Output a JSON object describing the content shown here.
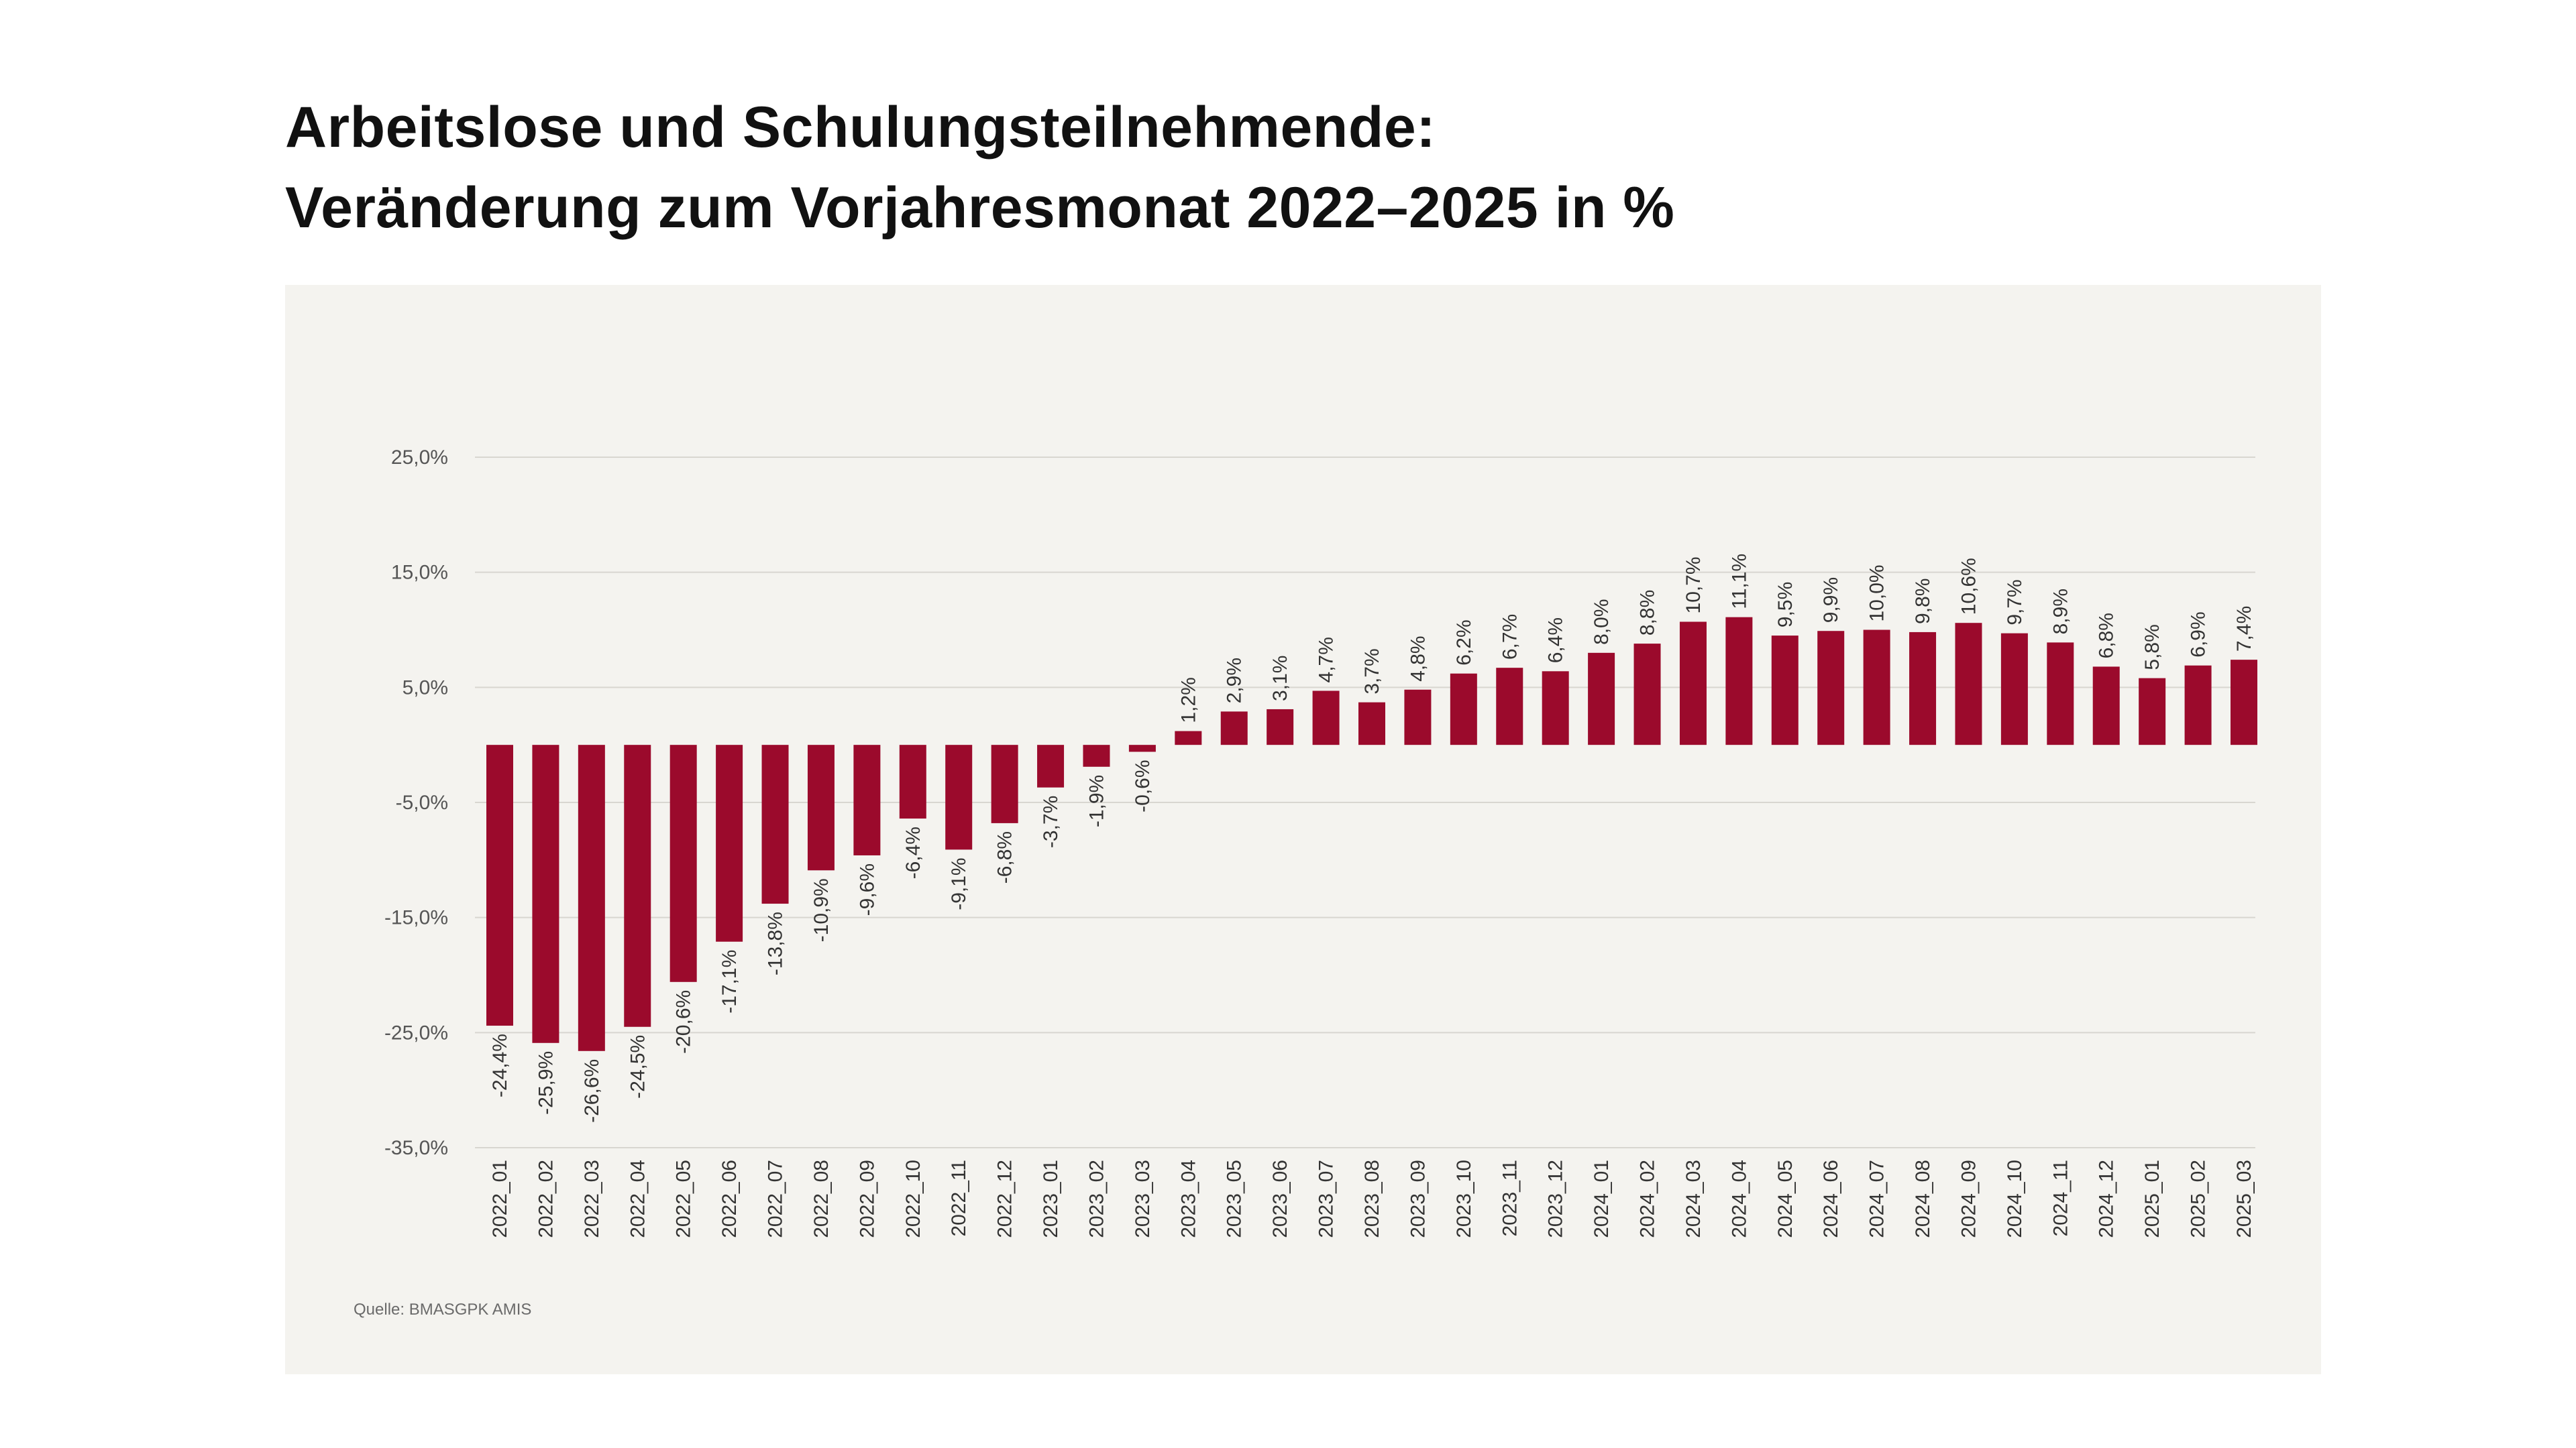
{
  "title": {
    "line1": "Arbeitslose und Schulungsteilnehmende:",
    "line2": "Veränderung zum Vorjahresmonat 2022–2025 in %"
  },
  "source": "Quelle: BMASGPK AMIS",
  "colors": {
    "bar": "#9b0a2c",
    "panel": "#f4f3ef",
    "grid": "#d8d6d0",
    "text": "#333333",
    "axis_text": "#555555"
  },
  "chart_data": {
    "type": "bar",
    "title": "Arbeitslose und Schulungsteilnehmende: Veränderung zum Vorjahresmonat 2022–2025 in %",
    "xlabel": "",
    "ylabel": "",
    "ylim": [
      -35,
      25
    ],
    "yticks": [
      25,
      15,
      5,
      -5,
      -15,
      -25,
      -35
    ],
    "ytick_labels": [
      "25,0%",
      "15,0%",
      "5,0%",
      "-5,0%",
      "-15,0%",
      "-25,0%",
      "-35,0%"
    ],
    "grid": true,
    "categories": [
      "2022_01",
      "2022_02",
      "2022_03",
      "2022_04",
      "2022_05",
      "2022_06",
      "2022_07",
      "2022_08",
      "2022_09",
      "2022_10",
      "2022_11",
      "2022_12",
      "2023_01",
      "2023_02",
      "2023_03",
      "2023_04",
      "2023_05",
      "2023_06",
      "2023_07",
      "2023_08",
      "2023_09",
      "2023_10",
      "2023_11",
      "2023_12",
      "2024_01",
      "2024_02",
      "2024_03",
      "2024_04",
      "2024_05",
      "2024_06",
      "2024_07",
      "2024_08",
      "2024_09",
      "2024_10",
      "2024_11",
      "2024_12",
      "2025_01",
      "2025_02",
      "2025_03"
    ],
    "values": [
      -24.4,
      -25.9,
      -26.6,
      -24.5,
      -20.6,
      -17.1,
      -13.8,
      -10.9,
      -9.6,
      -6.4,
      -9.1,
      -6.8,
      -3.7,
      -1.9,
      -0.6,
      1.2,
      2.9,
      3.1,
      4.7,
      3.7,
      4.8,
      6.2,
      6.7,
      6.4,
      8.0,
      8.8,
      10.7,
      11.1,
      9.5,
      9.9,
      10.0,
      9.8,
      10.6,
      9.7,
      8.9,
      6.8,
      5.8,
      6.9,
      7.4
    ],
    "value_labels": [
      "-24,4%",
      "-25,9%",
      "-26,6%",
      "-24,5%",
      "-20,6%",
      "-17,1%",
      "-13,8%",
      "-10,9%",
      "-9,6%",
      "-6,4%",
      "-9,1%",
      "-6,8%",
      "-3,7%",
      "-1,9%",
      "-0,6%",
      "1,2%",
      "2,9%",
      "3,1%",
      "4,7%",
      "3,7%",
      "4,8%",
      "6,2%",
      "6,7%",
      "6,4%",
      "8,0%",
      "8,8%",
      "10,7%",
      "11,1%",
      "9,5%",
      "9,9%",
      "10,0%",
      "9,8%",
      "10,6%",
      "9,7%",
      "8,9%",
      "6,8%",
      "5,8%",
      "6,9%",
      "7,4%"
    ]
  }
}
